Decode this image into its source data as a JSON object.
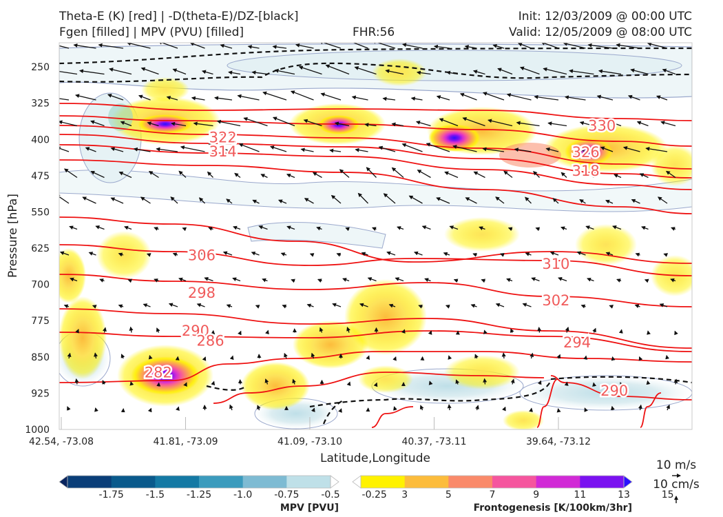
{
  "header": {
    "title_line1": "Theta-E (K) [red] | -D(theta-E)/DZ-[black]",
    "title_line2": "Fgen [filled] | MPV (PVU) [filled]",
    "fhr": "FHR:56",
    "init": "Init: 12/03/2009 @ 00:00 UTC",
    "valid": "Valid: 12/05/2009 @ 08:00 UTC"
  },
  "chart_data": {
    "type": "cross-section",
    "xlabel": "Latitude,Longitude",
    "ylabel": "Pressure [hPa]",
    "x_ticks": [
      "42.54, -73.08",
      "41.81, -73.09",
      "41.09, -73.10",
      "40.37, -73.11",
      "39.64, -73.12"
    ],
    "y_ticks": [
      250,
      325,
      400,
      475,
      550,
      625,
      700,
      775,
      850,
      925,
      1000
    ],
    "ylim": [
      1000,
      200
    ],
    "theta_e_contour_labels": [
      {
        "value": "330",
        "x_index": 4.35,
        "p": 372
      },
      {
        "value": "322",
        "x_index": 1.3,
        "p": 396
      },
      {
        "value": "314",
        "x_index": 1.3,
        "p": 425
      },
      {
        "value": "326",
        "x_index": 4.22,
        "p": 427
      },
      {
        "value": "318",
        "x_index": 4.22,
        "p": 465
      },
      {
        "value": "306",
        "x_index": 1.13,
        "p": 640
      },
      {
        "value": "310",
        "x_index": 3.98,
        "p": 658
      },
      {
        "value": "298",
        "x_index": 1.13,
        "p": 718
      },
      {
        "value": "302",
        "x_index": 3.98,
        "p": 733
      },
      {
        "value": "290",
        "x_index": 1.08,
        "p": 796
      },
      {
        "value": "286",
        "x_index": 1.2,
        "p": 817
      },
      {
        "value": "294",
        "x_index": 4.15,
        "p": 820
      },
      {
        "value": "282",
        "x_index": 0.78,
        "p": 882
      },
      {
        "value": "290",
        "x_index": 4.45,
        "p": 920
      }
    ],
    "mpv_colorbar": {
      "title": "MPV [PVU]",
      "ticks": [
        "-1.75",
        "-1.5",
        "-1.25",
        "-1.0",
        "-0.75",
        "-0.5",
        "-0.25"
      ],
      "colors": [
        "#08245e",
        "#0a3e78",
        "#0a5a8c",
        "#1479a4",
        "#3b9bbd",
        "#7ebbd3",
        "#bfe0e8",
        "#ffffff"
      ]
    },
    "fgen_colorbar": {
      "title": "Frontogenesis [K/100km/3hr]",
      "ticks": [
        "3",
        "5",
        "7",
        "9",
        "11",
        "13",
        "15"
      ],
      "colors": [
        "#ffffff",
        "#fff200",
        "#fcbc3c",
        "#fa8a6a",
        "#f5569e",
        "#d12ad6",
        "#7a12f0",
        "#2a10ff"
      ]
    },
    "quiver_key": {
      "horizontal": "10 m/s",
      "vertical": "10 cm/s"
    },
    "colors": {
      "theta_e": "#ee1111",
      "dthetae_dz": "#111111",
      "mpv_outline": "#9aa8cc"
    }
  }
}
